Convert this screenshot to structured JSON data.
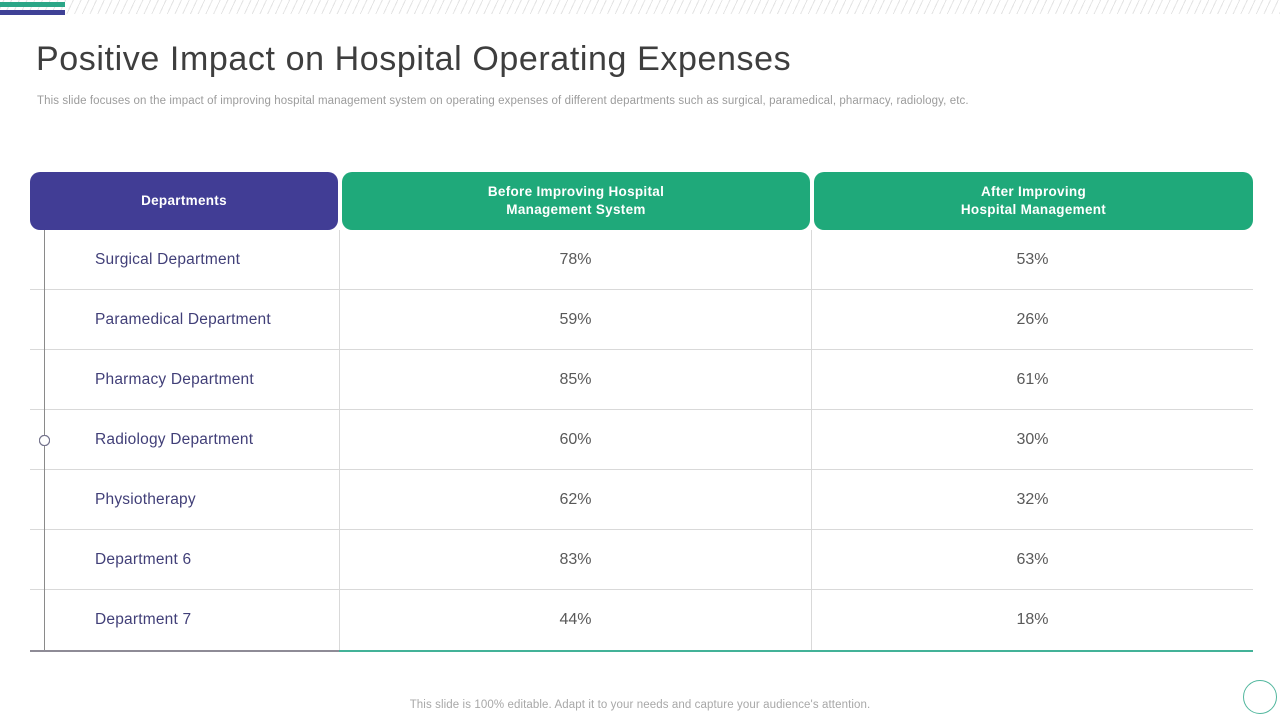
{
  "slide": {
    "title": "Positive Impact on Hospital Operating Expenses",
    "subtitle": "This slide focuses on the impact of improving hospital management system on operating expenses of different departments such as surgical, paramedical, pharmacy, radiology, etc.",
    "footer": "This slide is 100% editable. Adapt it to your needs and capture your audience's attention."
  },
  "colors": {
    "topbar_green": "#2ba687",
    "topbar_purple": "#3f4196",
    "header_purple": "#413d95",
    "header_green": "#1fa97a",
    "department_text": "#413f78",
    "value_text": "#595959",
    "accent_bottom_left": "#8e8b96",
    "accent_bottom_right": "#43b298",
    "corner_circle": "#52b79e"
  },
  "table": {
    "headers": [
      {
        "lines": [
          "Departments"
        ]
      },
      {
        "lines": [
          "Before Improving Hospital",
          "Management System"
        ]
      },
      {
        "lines": [
          "After Improving",
          "Hospital Management"
        ]
      }
    ],
    "rows": [
      {
        "department": "Surgical Department",
        "before": "78%",
        "after": "53%"
      },
      {
        "department": "Paramedical Department",
        "before": "59%",
        "after": "26%"
      },
      {
        "department": "Pharmacy Department",
        "before": "85%",
        "after": "61%"
      },
      {
        "department": "Radiology Department",
        "before": "60%",
        "after": "30%"
      },
      {
        "department": "Physiotherapy",
        "before": "62%",
        "after": "32%"
      },
      {
        "department": "Department 6",
        "before": "83%",
        "after": "63%"
      },
      {
        "department": "Department 7",
        "before": "44%",
        "after": "18%"
      }
    ]
  },
  "chart_data": {
    "type": "table",
    "title": "Positive Impact on Hospital Operating Expenses",
    "columns": [
      "Departments",
      "Before Improving Hospital Management System",
      "After Improving Hospital Management"
    ],
    "rows": [
      [
        "Surgical Department",
        "78%",
        "53%"
      ],
      [
        "Paramedical Department",
        "59%",
        "26%"
      ],
      [
        "Pharmacy Department",
        "85%",
        "61%"
      ],
      [
        "Radiology Department",
        "60%",
        "30%"
      ],
      [
        "Physiotherapy",
        "62%",
        "32%"
      ],
      [
        "Department 6",
        "83%",
        "63%"
      ],
      [
        "Department 7",
        "44%",
        "18%"
      ]
    ]
  }
}
